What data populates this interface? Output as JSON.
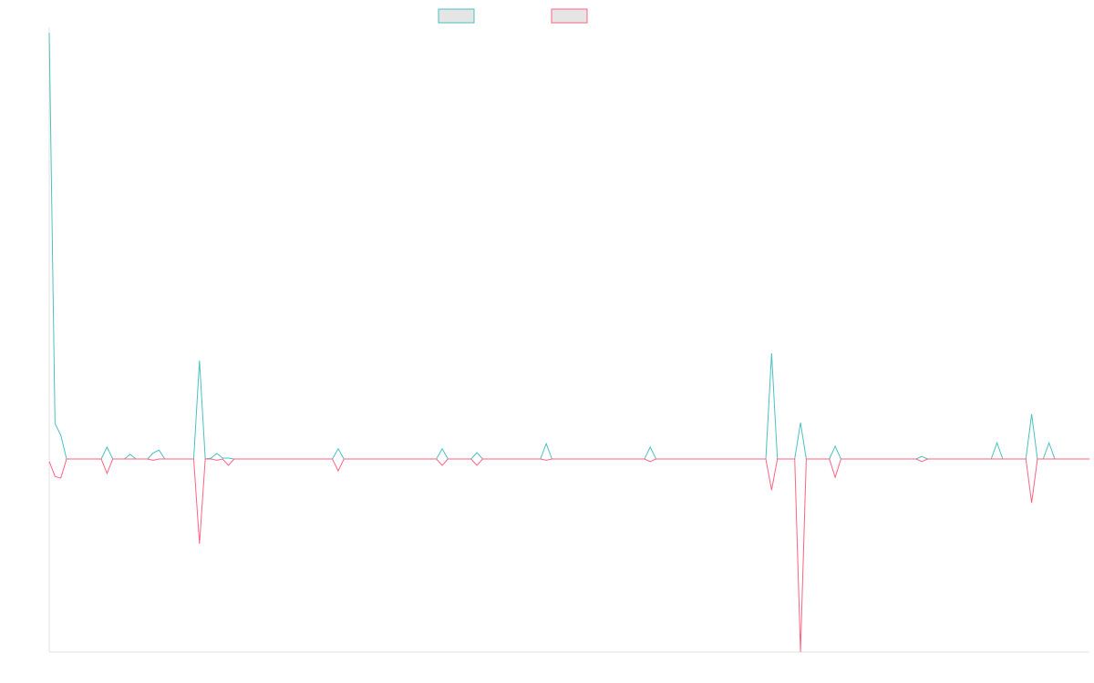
{
  "chart_data": {
    "type": "line",
    "title": "",
    "xlabel": "",
    "ylabel": "",
    "n_points": 181,
    "x_range": [
      0,
      180
    ],
    "ylim": [
      -45.3,
      100
    ],
    "grid": false,
    "legend_position": "top",
    "default_value": 0,
    "series": [
      {
        "name": "",
        "color": "#4bc0c0",
        "legend_fill": "#e5e5e5",
        "points": [
          [
            0,
            100
          ],
          [
            1,
            8.3
          ],
          [
            2,
            5.6
          ],
          [
            3,
            0
          ],
          [
            9,
            0
          ],
          [
            10,
            2.8
          ],
          [
            11,
            0
          ],
          [
            13,
            0
          ],
          [
            14,
            1.1
          ],
          [
            15,
            0
          ],
          [
            17,
            0
          ],
          [
            18,
            1.4
          ],
          [
            19,
            2.1
          ],
          [
            20,
            0
          ],
          [
            25,
            0
          ],
          [
            26,
            23.1
          ],
          [
            27,
            0
          ],
          [
            28,
            0.2
          ],
          [
            29,
            1.3
          ],
          [
            30,
            0.2
          ],
          [
            31,
            0.2
          ],
          [
            32,
            0
          ],
          [
            49,
            0
          ],
          [
            50,
            2.4
          ],
          [
            51,
            0
          ],
          [
            67,
            0
          ],
          [
            68,
            2.4
          ],
          [
            69,
            0
          ],
          [
            73,
            0
          ],
          [
            74,
            1.5
          ],
          [
            75,
            0
          ],
          [
            85,
            0
          ],
          [
            86,
            3.6
          ],
          [
            87,
            0
          ],
          [
            103,
            0
          ],
          [
            104,
            2.8
          ],
          [
            105,
            0
          ],
          [
            124,
            0
          ],
          [
            125,
            24.8
          ],
          [
            126,
            0
          ],
          [
            129,
            0
          ],
          [
            130,
            8.5
          ],
          [
            131,
            0
          ],
          [
            135,
            0
          ],
          [
            136,
            3.0
          ],
          [
            137,
            0
          ],
          [
            150,
            0
          ],
          [
            151,
            0.6
          ],
          [
            152,
            0
          ],
          [
            163,
            0
          ],
          [
            164,
            3.8
          ],
          [
            165,
            0
          ],
          [
            169,
            0
          ],
          [
            170,
            10.5
          ],
          [
            171,
            0
          ],
          [
            172,
            0
          ],
          [
            173,
            3.8
          ],
          [
            174,
            0
          ],
          [
            180,
            0
          ]
        ]
      },
      {
        "name": "",
        "color": "#ff6384",
        "legend_fill": "#e5e5e5",
        "points": [
          [
            0,
            -0.6
          ],
          [
            1,
            -4.1
          ],
          [
            2,
            -4.5
          ],
          [
            3,
            0
          ],
          [
            9,
            0
          ],
          [
            10,
            -3.4
          ],
          [
            11,
            0
          ],
          [
            17,
            0
          ],
          [
            18,
            -0.3
          ],
          [
            19,
            0
          ],
          [
            25,
            0
          ],
          [
            26,
            -19.9
          ],
          [
            27,
            0
          ],
          [
            29,
            -0.3
          ],
          [
            30,
            0
          ],
          [
            31,
            -1.5
          ],
          [
            32,
            0
          ],
          [
            49,
            0
          ],
          [
            50,
            -2.8
          ],
          [
            51,
            0
          ],
          [
            67,
            0
          ],
          [
            68,
            -1.5
          ],
          [
            69,
            0
          ],
          [
            73,
            0
          ],
          [
            74,
            -1.5
          ],
          [
            75,
            0
          ],
          [
            85,
            0
          ],
          [
            86,
            -0.3
          ],
          [
            87,
            0
          ],
          [
            103,
            0
          ],
          [
            104,
            -0.6
          ],
          [
            105,
            0
          ],
          [
            124,
            0
          ],
          [
            125,
            -7.3
          ],
          [
            126,
            0
          ],
          [
            129,
            0
          ],
          [
            130,
            -45.3
          ],
          [
            131,
            0
          ],
          [
            135,
            0
          ],
          [
            136,
            -4.3
          ],
          [
            137,
            0
          ],
          [
            150,
            0
          ],
          [
            151,
            -0.6
          ],
          [
            152,
            0
          ],
          [
            169,
            0
          ],
          [
            170,
            -10.3
          ],
          [
            171,
            0
          ],
          [
            180,
            0
          ]
        ]
      }
    ]
  }
}
